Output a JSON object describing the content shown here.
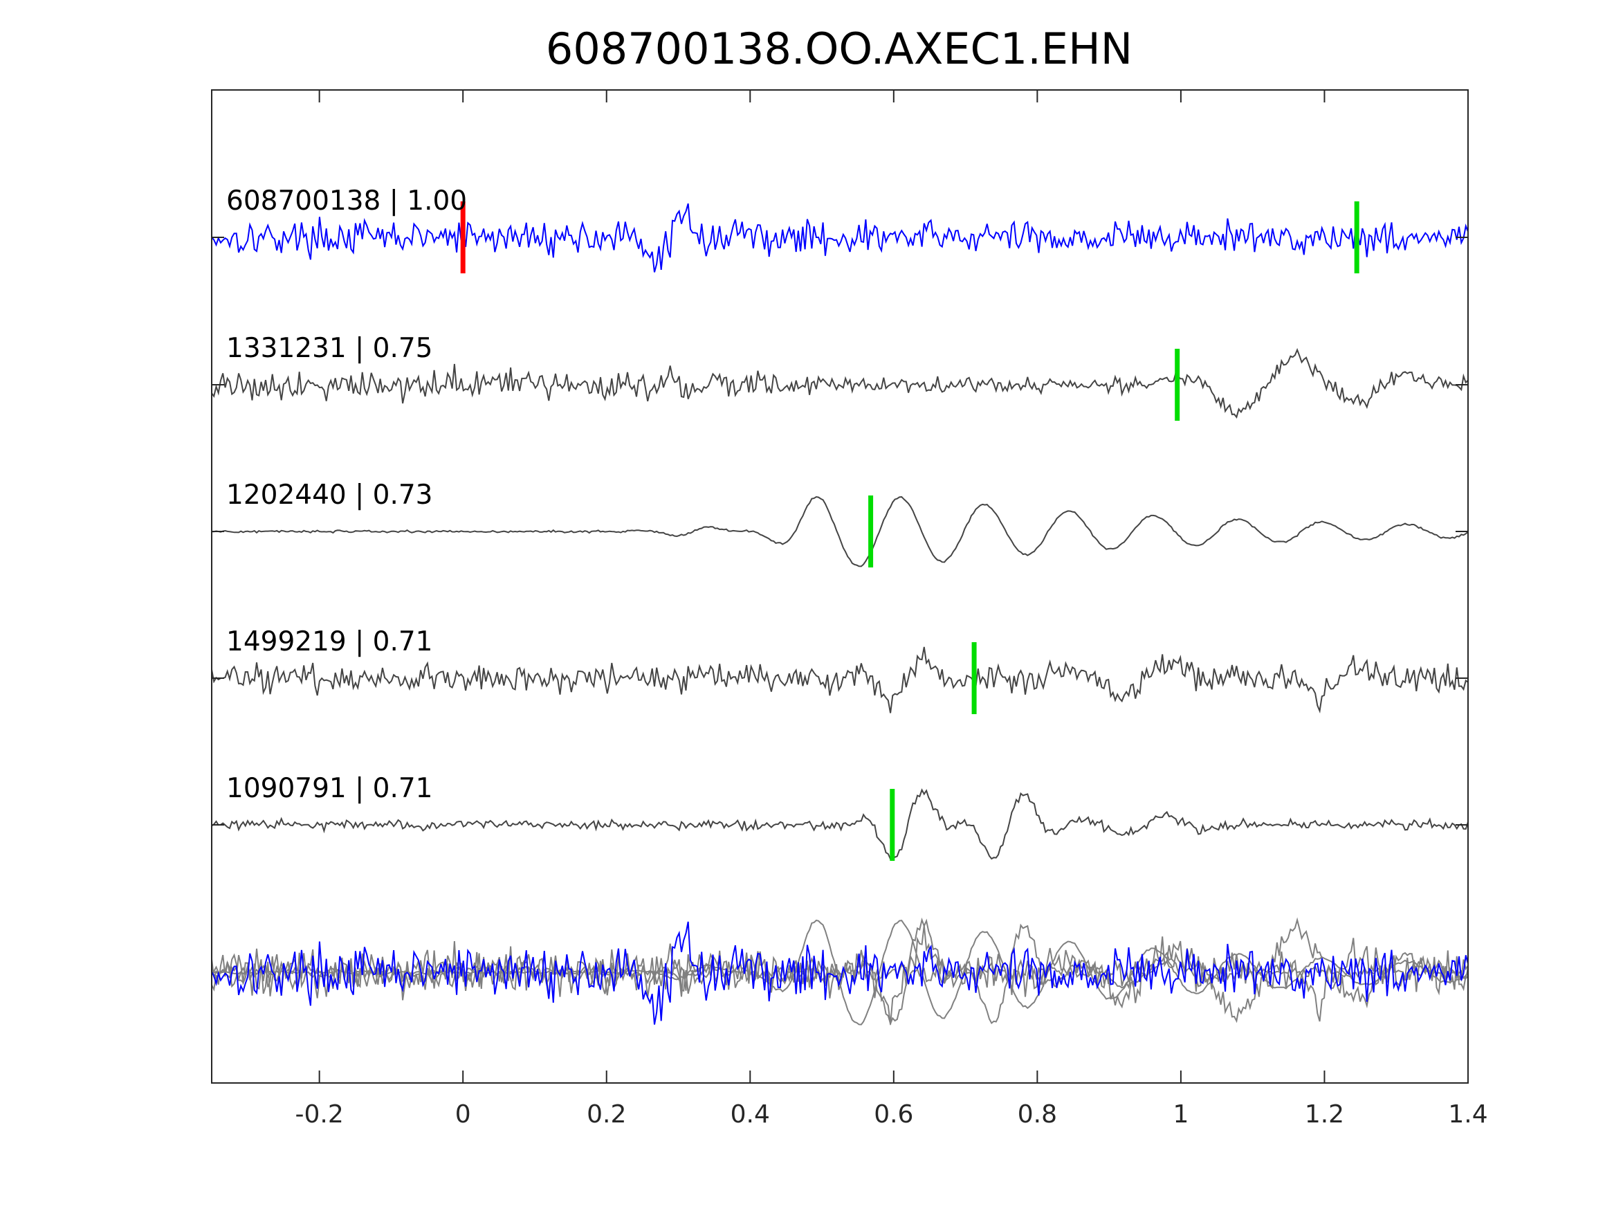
{
  "chart_data": {
    "type": "line",
    "title": "608700138.OO.AXEC1.EHN",
    "xlabel": "",
    "ylabel": "",
    "xlim": [
      -0.35,
      1.4
    ],
    "xticks": [
      -0.2,
      0,
      0.2,
      0.4,
      0.6,
      0.8,
      1,
      1.2,
      1.4
    ],
    "xtick_labels": [
      "-0.2",
      "0",
      "0.2",
      "0.4",
      "0.6",
      "0.8",
      "1",
      "1.2",
      "1.4"
    ],
    "grid": false,
    "legend": "none",
    "colors": {
      "template": "#0000ff",
      "neighbor": "#444444",
      "overlay_neighbor": "#808080",
      "template_pick": "#ff0000",
      "neighbor_pick": "#00dd00",
      "axes": "#262626"
    },
    "series": [
      {
        "label": "608700138 | 1.00",
        "role": "template",
        "picks": [
          {
            "x": 0.0,
            "color": "red"
          },
          {
            "x": 1.245,
            "color": "green"
          }
        ]
      },
      {
        "label": "1331231 | 0.75",
        "role": "neighbor",
        "picks": [
          {
            "x": 0.995,
            "color": "green"
          }
        ]
      },
      {
        "label": "1202440 | 0.73",
        "role": "neighbor",
        "picks": [
          {
            "x": 0.568,
            "color": "green"
          }
        ]
      },
      {
        "label": "1499219 | 0.71",
        "role": "neighbor",
        "picks": [
          {
            "x": 0.712,
            "color": "green"
          }
        ]
      },
      {
        "label": "1090791 | 0.71",
        "role": "neighbor",
        "picks": [
          {
            "x": 0.598,
            "color": "green"
          }
        ]
      }
    ],
    "overlay": {
      "description_shown": false,
      "series_count": 5
    }
  }
}
